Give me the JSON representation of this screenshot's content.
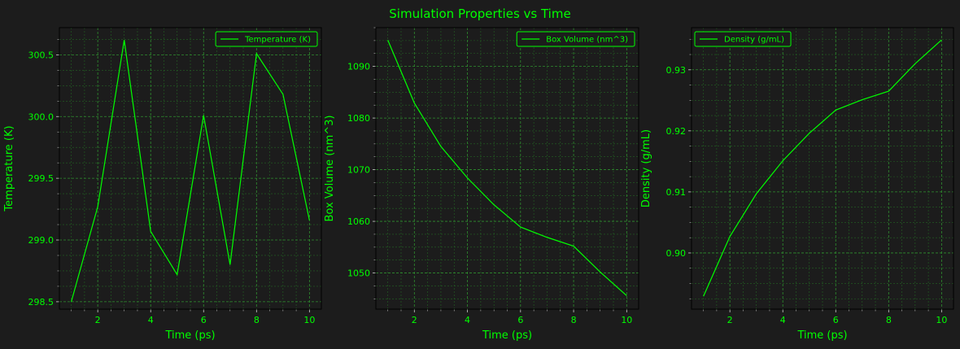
{
  "figure": {
    "title": "Simulation Properties vs Time",
    "colors": {
      "background": "#1c1c1c",
      "plot_background": "#1c1c1c",
      "accent": "#00ff00",
      "grid_major": "#2f8f2f",
      "grid_minor": "#236323",
      "axis_spine": "#000000"
    }
  },
  "chart_data": [
    {
      "type": "line",
      "title": "",
      "xlabel": "Time (ps)",
      "ylabel": "Temperature (K)",
      "x": [
        1,
        2,
        3,
        4,
        5,
        6,
        7,
        8,
        9,
        10
      ],
      "series": [
        {
          "name": "Temperature (K)",
          "values": [
            298.5,
            299.27,
            300.62,
            299.07,
            298.72,
            300.01,
            298.8,
            300.51,
            300.18,
            299.16
          ]
        }
      ],
      "xlim": [
        0.55,
        10.45
      ],
      "ylim": [
        298.44,
        300.72
      ],
      "xticks": [
        2,
        4,
        6,
        8,
        10
      ],
      "xtick_labels": [
        "2",
        "4",
        "6",
        "8",
        "10"
      ],
      "yticks": [
        298.5,
        299.0,
        299.5,
        300.0,
        300.5
      ],
      "ytick_labels": [
        "298.5",
        "299.0",
        "299.5",
        "300.0",
        "300.5"
      ],
      "grid": "major and minor, dashed",
      "legend_position": "upper right"
    },
    {
      "type": "line",
      "title": "",
      "xlabel": "Time (ps)",
      "ylabel": "Box Volume (nm^3)",
      "x": [
        1,
        2,
        3,
        4,
        5,
        6,
        7,
        8,
        9,
        10
      ],
      "series": [
        {
          "name": "Box Volume (nm^3)",
          "values": [
            1095.1,
            1082.9,
            1074.5,
            1068.4,
            1063.2,
            1058.9,
            1056.9,
            1055.2,
            1050.2,
            1045.6
          ]
        }
      ],
      "xlim": [
        0.55,
        10.45
      ],
      "ylim": [
        1043.0,
        1097.5
      ],
      "xticks": [
        2,
        4,
        6,
        8,
        10
      ],
      "xtick_labels": [
        "2",
        "4",
        "6",
        "8",
        "10"
      ],
      "yticks": [
        1050,
        1060,
        1070,
        1080,
        1090
      ],
      "ytick_labels": [
        "1050",
        "1060",
        "1070",
        "1080",
        "1090"
      ],
      "grid": "major and minor, dashed",
      "legend_position": "upper right"
    },
    {
      "type": "line",
      "title": "",
      "xlabel": "Time (ps)",
      "ylabel": "Density (g/mL)",
      "x": [
        1,
        2,
        3,
        4,
        5,
        6,
        7,
        8,
        9,
        10
      ],
      "series": [
        {
          "name": "Density (g/mL)",
          "values": [
            0.8929,
            0.9027,
            0.9097,
            0.9151,
            0.9196,
            0.9234,
            0.9251,
            0.9265,
            0.931,
            0.9349
          ]
        }
      ],
      "xlim": [
        0.55,
        10.45
      ],
      "ylim": [
        0.8908,
        0.9369
      ],
      "xticks": [
        2,
        4,
        6,
        8,
        10
      ],
      "xtick_labels": [
        "2",
        "4",
        "6",
        "8",
        "10"
      ],
      "yticks": [
        0.9,
        0.91,
        0.92,
        0.93
      ],
      "ytick_labels": [
        "0.90",
        "0.91",
        "0.92",
        "0.93"
      ],
      "grid": "major and minor, dashed",
      "legend_position": "upper left"
    }
  ]
}
